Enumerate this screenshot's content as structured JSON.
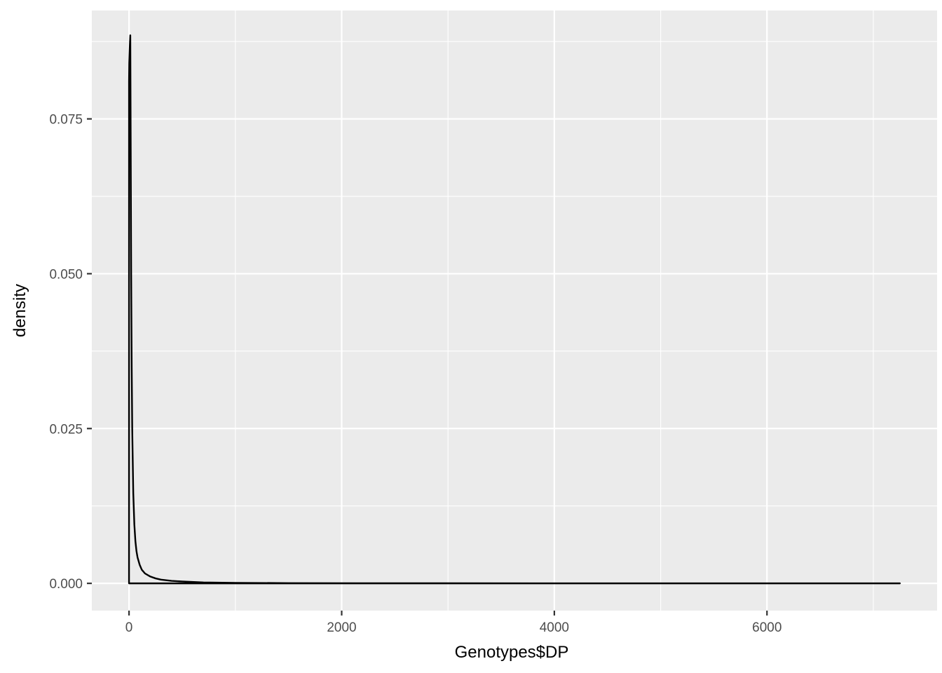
{
  "chart_data": {
    "type": "area",
    "xlabel": "Genotypes$DP",
    "ylabel": "density",
    "xlim": [
      -350,
      7600
    ],
    "ylim": [
      -0.0044,
      0.0925
    ],
    "x_ticks": [
      {
        "value": 0,
        "label": "0"
      },
      {
        "value": 2000,
        "label": "2000"
      },
      {
        "value": 4000,
        "label": "4000"
      },
      {
        "value": 6000,
        "label": "6000"
      }
    ],
    "y_ticks": [
      {
        "value": 0.0,
        "label": "0.000"
      },
      {
        "value": 0.025,
        "label": "0.025"
      },
      {
        "value": 0.05,
        "label": "0.050"
      },
      {
        "value": 0.075,
        "label": "0.075"
      }
    ],
    "x_minor": [
      1000,
      3000,
      5000,
      7000
    ],
    "y_minor": [
      0.0125,
      0.0375,
      0.0625,
      0.0875
    ],
    "grid": true,
    "panel_background": "#ebebeb",
    "grid_color": "#ffffff",
    "line_color": "#000000",
    "series": [
      {
        "x": [
          0,
          2,
          8,
          12,
          16,
          20,
          25,
          30,
          40,
          50,
          60,
          70,
          80,
          100,
          120,
          150,
          200,
          250,
          300,
          400,
          500,
          700,
          1000,
          1500,
          2500,
          4000,
          6000,
          7250
        ],
        "values": [
          0.081,
          0.084,
          0.087,
          0.0885,
          0.07,
          0.05,
          0.035,
          0.025,
          0.0145,
          0.0095,
          0.0068,
          0.0052,
          0.0042,
          0.003,
          0.0022,
          0.0016,
          0.0011,
          0.0008,
          0.0006,
          0.0004,
          0.0003,
          0.00015,
          8e-05,
          4e-05,
          2e-05,
          1e-05,
          5e-06,
          0.0
        ]
      }
    ]
  }
}
